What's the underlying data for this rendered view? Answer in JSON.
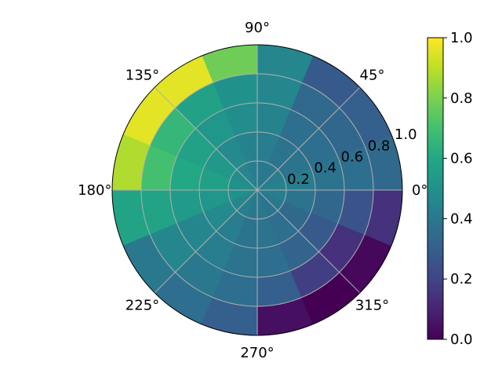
{
  "chart_data": {
    "type": "heatmap",
    "projection": "polar",
    "title": "",
    "theta_unit": "degrees",
    "theta_edges": [
      0,
      22.5,
      45,
      67.5,
      90,
      112.5,
      135,
      157.5,
      180,
      202.5,
      225,
      247.5,
      270,
      292.5,
      315,
      337.5,
      360
    ],
    "r_edges": [
      0,
      0.2,
      0.4,
      0.6,
      0.8,
      1.0
    ],
    "rlim": [
      0,
      1.0
    ],
    "theta_tick_labels": [
      "0°",
      "45°",
      "90°",
      "135°",
      "180°",
      "225°",
      "270°",
      "315°"
    ],
    "r_tick_labels": [
      "0.2",
      "0.4",
      "0.6",
      "0.8",
      "1.0"
    ],
    "values": [
      [
        0.44,
        0.42,
        0.4,
        0.4,
        0.42,
        0.45,
        0.48,
        0.5,
        0.5,
        0.46,
        0.42,
        0.4,
        0.4,
        0.38,
        0.4,
        0.42
      ],
      [
        0.42,
        0.38,
        0.38,
        0.42,
        0.44,
        0.47,
        0.53,
        0.56,
        0.52,
        0.47,
        0.42,
        0.38,
        0.38,
        0.36,
        0.34,
        0.38
      ],
      [
        0.38,
        0.36,
        0.36,
        0.44,
        0.48,
        0.52,
        0.57,
        0.6,
        0.54,
        0.46,
        0.42,
        0.38,
        0.36,
        0.32,
        0.28,
        0.33
      ],
      [
        0.36,
        0.33,
        0.34,
        0.46,
        0.5,
        0.57,
        0.66,
        0.7,
        0.58,
        0.46,
        0.4,
        0.36,
        0.3,
        0.18,
        0.14,
        0.26
      ],
      [
        0.34,
        0.3,
        0.28,
        0.46,
        0.78,
        0.96,
        0.96,
        0.88,
        0.58,
        0.4,
        0.36,
        0.3,
        0.04,
        0.0,
        0.02,
        0.14
      ]
    ],
    "colormap": "viridis",
    "colorbar": {
      "vmin": 0.0,
      "vmax": 1.0,
      "tick_labels": [
        "0.0",
        "0.2",
        "0.4",
        "0.6",
        "0.8",
        "1.0"
      ]
    },
    "grid": true
  }
}
